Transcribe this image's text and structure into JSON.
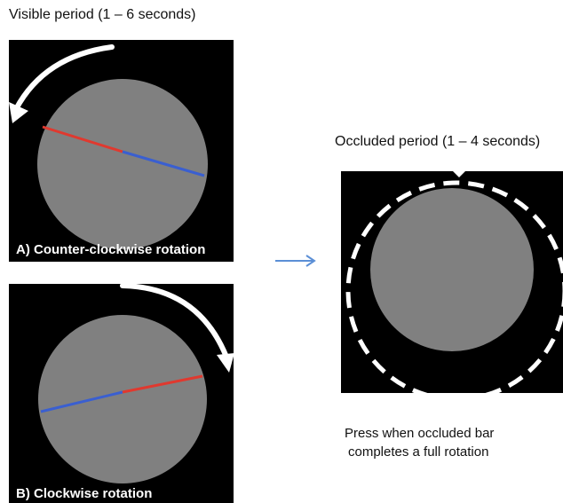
{
  "visible_period_label": "Visible period (1 – 6 seconds)",
  "occluded_period_label": "Occluded period (1 – 4 seconds)",
  "panel_a": {
    "label": "A) Counter-clockwise rotation",
    "direction": "counter-clockwise",
    "bar_colors": {
      "left": "#e0392f",
      "right": "#3a5fd0"
    }
  },
  "panel_b": {
    "label": "B) Clockwise rotation",
    "direction": "clockwise",
    "bar_colors": {
      "left": "#3a5fd0",
      "right": "#e0392f"
    }
  },
  "instruction": {
    "line1": "Press when occluded bar",
    "line2": "completes a full rotation"
  },
  "colors": {
    "background": "#000000",
    "disc": "#808080",
    "arrow": "#ffffff",
    "transition_arrow": "#5b8fd6"
  },
  "icons": {
    "rotation_arrow": "curved-arrow-icon",
    "transition_arrow": "right-arrow-icon",
    "occluder_ring": "dashed-ring-icon"
  }
}
